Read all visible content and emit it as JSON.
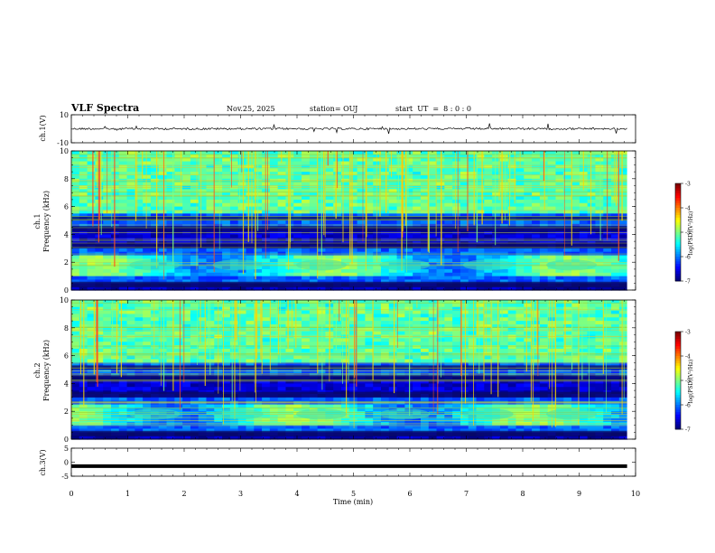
{
  "header": {
    "title": "VLF Spectra",
    "date": "Nov.25, 2025",
    "station": "station= OUJ",
    "start": "start  UT  =  8 : 0 : 0"
  },
  "chart_data": [
    {
      "type": "line",
      "name": "ch1-waveform",
      "ylabel": "ch.1(V)",
      "ylim": [
        -10,
        10
      ],
      "y_ticks": [
        "10",
        "-10"
      ],
      "baseline": 0
    },
    {
      "type": "heatmap",
      "name": "ch1-spectrogram",
      "ylabel_top": "ch.1",
      "ylabel": "Frequency (kHz)",
      "ylim": [
        0,
        10
      ],
      "y_ticks": [
        "0",
        "2",
        "4",
        "6",
        "8",
        "10"
      ],
      "colorbar": {
        "label": "log(PSD)(V²/Hz)",
        "range": [
          -7,
          -3
        ],
        "ticks": [
          "-3",
          "-4",
          "-5",
          "-6",
          "-7"
        ]
      }
    },
    {
      "type": "heatmap",
      "name": "ch2-spectrogram",
      "ylabel_top": "ch.2",
      "ylabel": "Frequency (kHz)",
      "ylim": [
        0,
        10
      ],
      "y_ticks": [
        "0",
        "2",
        "4",
        "6",
        "8",
        "10"
      ],
      "colorbar": {
        "label": "log(PSD)(V²/Hz)",
        "range": [
          -7,
          -3
        ],
        "ticks": [
          "-3",
          "-4",
          "-5",
          "-6",
          "-7"
        ]
      }
    },
    {
      "type": "line",
      "name": "ch3-waveform",
      "ylabel": "ch.3(V)",
      "ylim": [
        -5,
        5
      ],
      "y_ticks": [
        "5",
        "0",
        "-5"
      ],
      "baseline": -1.4
    }
  ],
  "x_axis": {
    "label": "Time (min)",
    "range": [
      0,
      10
    ],
    "data_end": 9.85,
    "ticks": [
      "0",
      "1",
      "2",
      "3",
      "4",
      "5",
      "6",
      "7",
      "8",
      "9",
      "10"
    ]
  },
  "colors": {
    "axis": "#000000",
    "waveform": "#000000",
    "background": "#ffffff"
  }
}
